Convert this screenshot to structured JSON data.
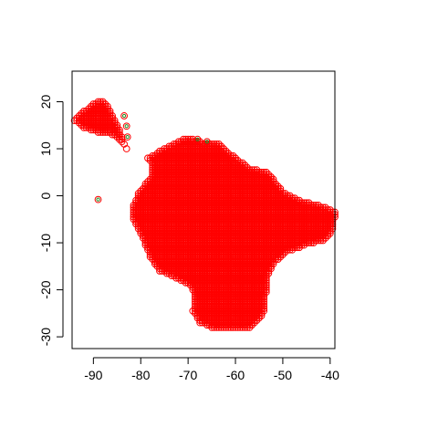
{
  "chart_data": {
    "type": "scatter",
    "title": "",
    "xlabel": "",
    "ylabel": "",
    "xlim": [
      -94.5,
      -39
    ],
    "ylim": [
      -32.5,
      26.5
    ],
    "x_ticks": [
      -90,
      -80,
      -70,
      -60,
      -50,
      -40
    ],
    "x_tick_labels": [
      "-90",
      "-80",
      "-70",
      "-60",
      "-50",
      "-40"
    ],
    "y_ticks": [
      -30,
      -20,
      -10,
      0,
      10,
      20
    ],
    "y_tick_labels": [
      "-30",
      "-20",
      "-10",
      "0",
      "10",
      "20"
    ],
    "grid": false,
    "legend": "none",
    "marker": "open-circle",
    "point_color": "#ff0000",
    "highlight_color": "#228b22",
    "approximate_region_outline": [
      [
        -94,
        16
      ],
      [
        -92,
        18
      ],
      [
        -90,
        19.5
      ],
      [
        -88,
        20.5
      ],
      [
        -86.5,
        18.5
      ],
      [
        -85,
        15.5
      ],
      [
        -84,
        13
      ],
      [
        -83,
        10
      ],
      [
        -81,
        8.5
      ],
      [
        -78.5,
        8
      ],
      [
        -76,
        9.5
      ],
      [
        -73,
        11
      ],
      [
        -70,
        12.5
      ],
      [
        -67,
        11.5
      ],
      [
        -63,
        11
      ],
      [
        -61,
        9
      ],
      [
        -57,
        6
      ],
      [
        -53,
        5
      ],
      [
        -50,
        1
      ],
      [
        -46,
        -1
      ],
      [
        -42,
        -2
      ],
      [
        -38.8,
        -3.5
      ],
      [
        -39.5,
        -7.5
      ],
      [
        -41,
        -9.5
      ],
      [
        -45,
        -10.5
      ],
      [
        -49,
        -12
      ],
      [
        -51.5,
        -14
      ],
      [
        -53,
        -17
      ],
      [
        -53.5,
        -21
      ],
      [
        -54,
        -25
      ],
      [
        -56.5,
        -28
      ],
      [
        -61,
        -28.5
      ],
      [
        -65,
        -28
      ],
      [
        -67.5,
        -27
      ],
      [
        -69,
        -24.5
      ],
      [
        -68.5,
        -21
      ],
      [
        -69.5,
        -19
      ],
      [
        -72.5,
        -17.5
      ],
      [
        -76,
        -16
      ],
      [
        -78,
        -13
      ],
      [
        -80,
        -8
      ],
      [
        -81.5,
        -5
      ],
      [
        -81.5,
        -2
      ],
      [
        -80.5,
        0.5
      ],
      [
        -79,
        2.5
      ],
      [
        -77.5,
        4.5
      ],
      [
        -77.5,
        7
      ],
      [
        -79,
        8.5
      ],
      [
        -80.5,
        8
      ],
      [
        -82.5,
        10
      ],
      [
        -84,
        11.5
      ],
      [
        -86,
        13
      ],
      [
        -89,
        13.5
      ],
      [
        -92,
        14.5
      ],
      [
        -94,
        16
      ]
    ],
    "highlighted_points": [
      {
        "x": -89,
        "y": -0.8
      },
      {
        "x": -83.5,
        "y": 17
      },
      {
        "x": -83,
        "y": 14.8
      },
      {
        "x": -82.8,
        "y": 12.5
      },
      {
        "x": -68,
        "y": 12
      },
      {
        "x": -66,
        "y": 11.5
      }
    ]
  }
}
